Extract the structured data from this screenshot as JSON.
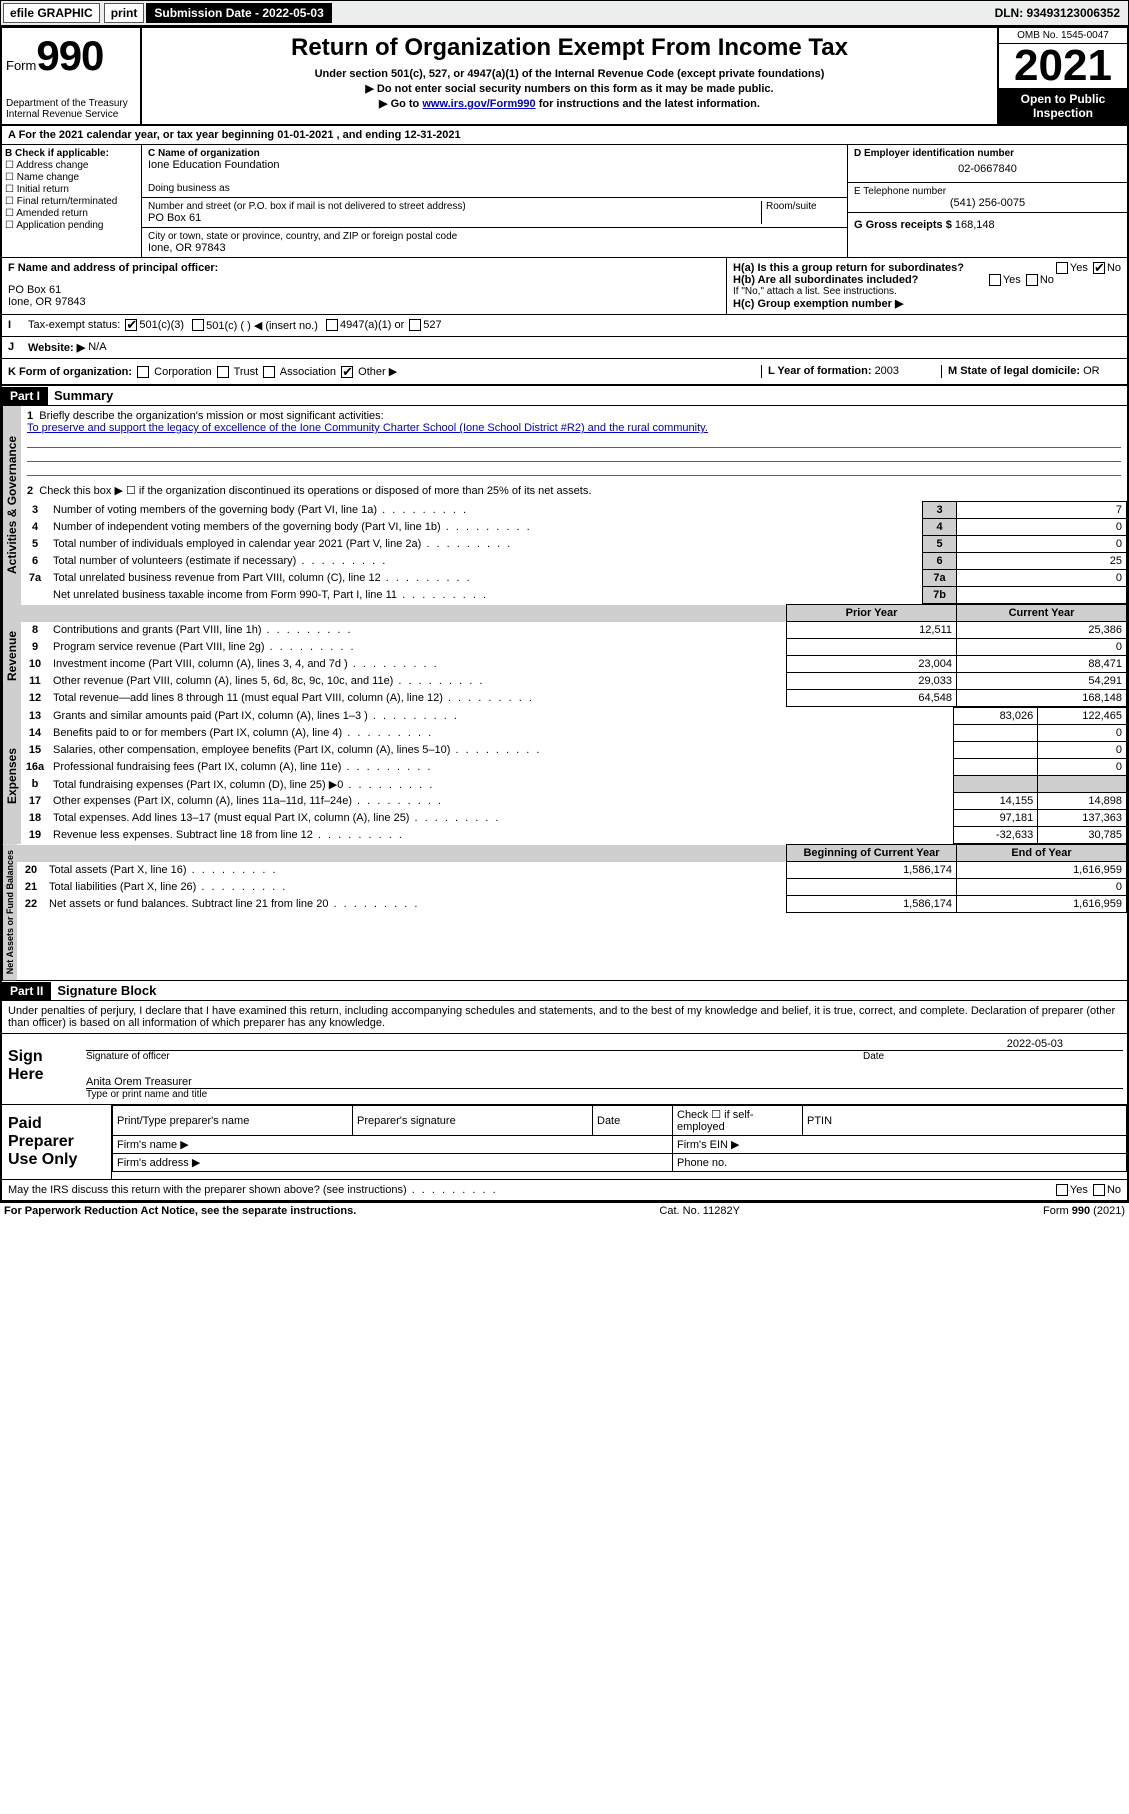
{
  "topbar": {
    "efile": "efile GRAPHIC",
    "print": "print",
    "subdate_label": "Submission Date - 2022-05-03",
    "dln": "DLN: 93493123006352"
  },
  "header": {
    "form_prefix": "Form",
    "form_no": "990",
    "dept": "Department of the Treasury",
    "irs": "Internal Revenue Service",
    "title": "Return of Organization Exempt From Income Tax",
    "sub1": "Under section 501(c), 527, or 4947(a)(1) of the Internal Revenue Code (except private foundations)",
    "sub2": "▶ Do not enter social security numbers on this form as it may be made public.",
    "sub3_pre": "▶ Go to ",
    "sub3_link": "www.irs.gov/Form990",
    "sub3_post": " for instructions and the latest information.",
    "omb": "OMB No. 1545-0047",
    "year": "2021",
    "open": "Open to Public Inspection"
  },
  "a_line": "A For the 2021 calendar year, or tax year beginning 01-01-2021   , and ending 12-31-2021",
  "b": {
    "title": "B Check if applicable:",
    "opts": [
      "Address change",
      "Name change",
      "Initial return",
      "Final return/terminated",
      "Amended return",
      "Application pending"
    ]
  },
  "c": {
    "label": "C Name of organization",
    "name": "Ione Education Foundation",
    "dba_label": "Doing business as",
    "addr_label": "Number and street (or P.O. box if mail is not delivered to street address)",
    "room": "Room/suite",
    "addr": "PO Box 61",
    "city_label": "City or town, state or province, country, and ZIP or foreign postal code",
    "city": "Ione, OR  97843"
  },
  "d": {
    "label": "D Employer identification number",
    "val": "02-0667840"
  },
  "e": {
    "label": "E Telephone number",
    "val": "(541) 256-0075"
  },
  "g": {
    "label": "G Gross receipts $",
    "val": "168,148"
  },
  "f": {
    "label": "F  Name and address of principal officer:",
    "addr1": "PO Box 61",
    "addr2": "Ione, OR  97843"
  },
  "h": {
    "a": "H(a)  Is this a group return for subordinates?",
    "b": "H(b)  Are all subordinates included?",
    "b_note": "If \"No,\" attach a list. See instructions.",
    "c": "H(c)  Group exemption number ▶",
    "yes": "Yes",
    "no": "No"
  },
  "i": {
    "label": "Tax-exempt status:",
    "opts": [
      "501(c)(3)",
      "501(c) (  ) ◀ (insert no.)",
      "4947(a)(1) or",
      "527"
    ]
  },
  "j": {
    "label": "Website: ▶",
    "val": "N/A"
  },
  "k": {
    "label": "K Form of organization:",
    "opts": [
      "Corporation",
      "Trust",
      "Association",
      "Other ▶"
    ]
  },
  "l": {
    "label": "L Year of formation: ",
    "val": "2003"
  },
  "m": {
    "label": "M State of legal domicile: ",
    "val": "OR"
  },
  "part1": {
    "bar": "Part I",
    "title": "Summary",
    "q1": "Briefly describe the organization's mission or most significant activities:",
    "q1_ans": "To preserve and support the legacy of excellence of the Ione Community Charter School (Ione School District #R2) and the rural community.",
    "q2": "Check this box ▶ ☐  if the organization discontinued its operations or disposed of more than 25% of its net assets.",
    "lines_gov": [
      {
        "n": "3",
        "t": "Number of voting members of the governing body (Part VI, line 1a)",
        "box": "3",
        "v": "7"
      },
      {
        "n": "4",
        "t": "Number of independent voting members of the governing body (Part VI, line 1b)",
        "box": "4",
        "v": "0"
      },
      {
        "n": "5",
        "t": "Total number of individuals employed in calendar year 2021 (Part V, line 2a)",
        "box": "5",
        "v": "0"
      },
      {
        "n": "6",
        "t": "Total number of volunteers (estimate if necessary)",
        "box": "6",
        "v": "25"
      },
      {
        "n": "7a",
        "t": "Total unrelated business revenue from Part VIII, column (C), line 12",
        "box": "7a",
        "v": "0"
      },
      {
        "n": "",
        "t": "Net unrelated business taxable income from Form 990-T, Part I, line 11",
        "box": "7b",
        "v": ""
      }
    ],
    "col_prior": "Prior Year",
    "col_current": "Current Year",
    "rev": [
      {
        "n": "8",
        "t": "Contributions and grants (Part VIII, line 1h)",
        "p": "12,511",
        "c": "25,386"
      },
      {
        "n": "9",
        "t": "Program service revenue (Part VIII, line 2g)",
        "p": "",
        "c": "0"
      },
      {
        "n": "10",
        "t": "Investment income (Part VIII, column (A), lines 3, 4, and 7d )",
        "p": "23,004",
        "c": "88,471"
      },
      {
        "n": "11",
        "t": "Other revenue (Part VIII, column (A), lines 5, 6d, 8c, 9c, 10c, and 11e)",
        "p": "29,033",
        "c": "54,291"
      },
      {
        "n": "12",
        "t": "Total revenue—add lines 8 through 11 (must equal Part VIII, column (A), line 12)",
        "p": "64,548",
        "c": "168,148"
      }
    ],
    "exp": [
      {
        "n": "13",
        "t": "Grants and similar amounts paid (Part IX, column (A), lines 1–3 )",
        "p": "83,026",
        "c": "122,465"
      },
      {
        "n": "14",
        "t": "Benefits paid to or for members (Part IX, column (A), line 4)",
        "p": "",
        "c": "0"
      },
      {
        "n": "15",
        "t": "Salaries, other compensation, employee benefits (Part IX, column (A), lines 5–10)",
        "p": "",
        "c": "0"
      },
      {
        "n": "16a",
        "t": "Professional fundraising fees (Part IX, column (A), line 11e)",
        "p": "",
        "c": "0"
      },
      {
        "n": "b",
        "t": "Total fundraising expenses (Part IX, column (D), line 25) ▶0",
        "p": "__shade__",
        "c": "__shade__"
      },
      {
        "n": "17",
        "t": "Other expenses (Part IX, column (A), lines 11a–11d, 11f–24e)",
        "p": "14,155",
        "c": "14,898"
      },
      {
        "n": "18",
        "t": "Total expenses. Add lines 13–17 (must equal Part IX, column (A), line 25)",
        "p": "97,181",
        "c": "137,363"
      },
      {
        "n": "19",
        "t": "Revenue less expenses. Subtract line 18 from line 12",
        "p": "-32,633",
        "c": "30,785"
      }
    ],
    "col_begin": "Beginning of Current Year",
    "col_end": "End of Year",
    "net": [
      {
        "n": "20",
        "t": "Total assets (Part X, line 16)",
        "p": "1,586,174",
        "c": "1,616,959"
      },
      {
        "n": "21",
        "t": "Total liabilities (Part X, line 26)",
        "p": "",
        "c": "0"
      },
      {
        "n": "22",
        "t": "Net assets or fund balances. Subtract line 21 from line 20",
        "p": "1,586,174",
        "c": "1,616,959"
      }
    ],
    "tab_gov": "Activities & Governance",
    "tab_rev": "Revenue",
    "tab_exp": "Expenses",
    "tab_net": "Net Assets or Fund Balances"
  },
  "part2": {
    "bar": "Part II",
    "title": "Signature Block",
    "decl": "Under penalties of perjury, I declare that I have examined this return, including accompanying schedules and statements, and to the best of my knowledge and belief, it is true, correct, and complete. Declaration of preparer (other than officer) is based on all information of which preparer has any knowledge.",
    "sign_here": "Sign Here",
    "sig_officer": "Signature of officer",
    "date": "Date",
    "date_val": "2022-05-03",
    "name": "Anita Orem Treasurer",
    "name_lbl": "Type or print name and title",
    "paid": "Paid Preparer Use Only",
    "prep_name": "Print/Type preparer's name",
    "prep_sig": "Preparer's signature",
    "self": "Check ☐ if self-employed",
    "ptin": "PTIN",
    "firm_name": "Firm's name  ▶",
    "firm_ein": "Firm's EIN ▶",
    "firm_addr": "Firm's address ▶",
    "phone": "Phone no.",
    "may": "May the IRS discuss this return with the preparer shown above? (see instructions)"
  },
  "footer": {
    "pra": "For Paperwork Reduction Act Notice, see the separate instructions.",
    "cat": "Cat. No. 11282Y",
    "form": "Form 990 (2021)"
  }
}
